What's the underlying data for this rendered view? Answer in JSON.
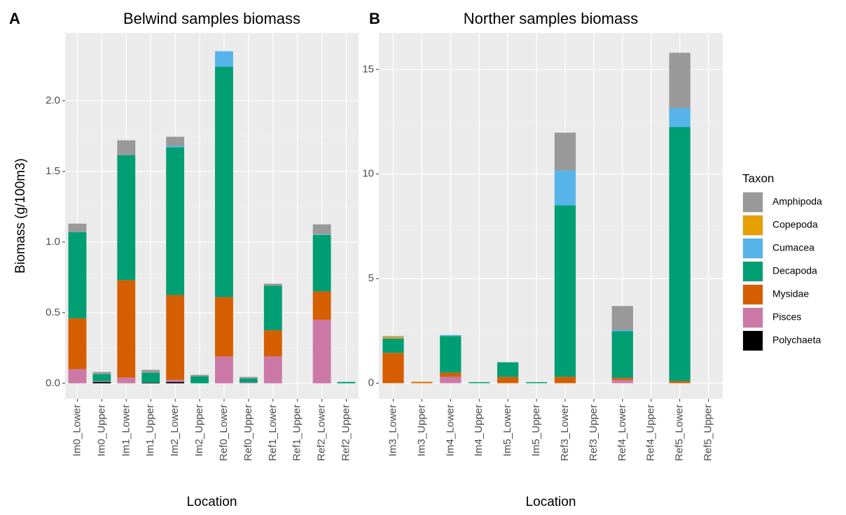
{
  "chart_data": [
    {
      "type": "bar",
      "stacked": true,
      "panel_label": "A",
      "title": "Belwind samples biomass",
      "x_label": "Location",
      "y_label": "Biomass (g/100m3)",
      "categories": [
        "Im0_Lower",
        "Im0_Upper",
        "Im1_Lower",
        "Im1_Upper",
        "Im2_Lower",
        "Im2_Upper",
        "Ref0_Lower",
        "Ref0_Upper",
        "Ref1_Lower",
        "Ref1_Upper",
        "Ref2_Lower",
        "Ref2_Upper"
      ],
      "series": [
        {
          "name": "Polychaeta",
          "color": "#000000",
          "values": [
            0,
            0.01,
            0,
            0.005,
            0.01,
            0,
            0,
            0,
            0,
            0,
            0,
            0
          ]
        },
        {
          "name": "Pisces",
          "color": "#CC79A7",
          "values": [
            0.1,
            0.005,
            0.04,
            0,
            0.015,
            0,
            0.19,
            0.005,
            0.19,
            0,
            0.45,
            0
          ]
        },
        {
          "name": "Mysidae",
          "color": "#D55E00",
          "values": [
            0.36,
            0,
            0.69,
            0,
            0.6,
            0,
            0.42,
            0,
            0.185,
            0,
            0.2,
            0
          ]
        },
        {
          "name": "Decapoda",
          "color": "#009E73",
          "values": [
            0.61,
            0.05,
            0.885,
            0.07,
            1.045,
            0.05,
            1.63,
            0.03,
            0.315,
            0,
            0.4,
            0.01
          ]
        },
        {
          "name": "Cumacea",
          "color": "#56B4E9",
          "values": [
            0,
            0,
            0,
            0,
            0.01,
            0,
            0.11,
            0,
            0,
            0,
            0.005,
            0
          ]
        },
        {
          "name": "Copepoda",
          "color": "#E69F00",
          "values": [
            0,
            0,
            0,
            0,
            0,
            0,
            0,
            0,
            0,
            0,
            0,
            0
          ]
        },
        {
          "name": "Amphipoda",
          "color": "#999999",
          "values": [
            0.06,
            0.015,
            0.105,
            0.02,
            0.065,
            0.01,
            0,
            0.01,
            0.015,
            0,
            0.07,
            0
          ]
        }
      ],
      "ylim": [
        -0.11,
        2.48
      ],
      "yticks": [
        {
          "value": 0,
          "label": "0.0"
        },
        0.5,
        {
          "value": 1,
          "label": "1.0"
        },
        1.5,
        {
          "value": 2,
          "label": "2.0"
        }
      ],
      "grid": true
    },
    {
      "type": "bar",
      "stacked": true,
      "panel_label": "B",
      "title": "Norther samples biomass",
      "x_label": "Location",
      "legend_title": "Taxon",
      "categories": [
        "Im3_Lower",
        "Im3_Upper",
        "Im4_Lower",
        "Im4_Upper",
        "Im5_Lower",
        "Im5_Upper",
        "Ref3_Lower",
        "Ref3_Upper",
        "Ref4_Lower",
        "Ref4_Upper",
        "Ref5_Lower",
        "Ref5_Upper"
      ],
      "series": [
        {
          "name": "Polychaeta",
          "color": "#000000",
          "values": [
            0,
            0,
            0,
            0,
            0,
            0,
            0,
            0,
            0,
            0,
            0,
            0
          ]
        },
        {
          "name": "Pisces",
          "color": "#CC79A7",
          "values": [
            0,
            0,
            0.3,
            0,
            0,
            0,
            0,
            0,
            0.15,
            0,
            0,
            0
          ]
        },
        {
          "name": "Mysidae",
          "color": "#D55E00",
          "values": [
            1.45,
            0.05,
            0.2,
            0,
            0.3,
            0,
            0.3,
            0,
            0.1,
            0,
            0.1,
            0
          ]
        },
        {
          "name": "Decapoda",
          "color": "#009E73",
          "values": [
            0.68,
            0,
            1.75,
            0.05,
            0.7,
            0.05,
            8.2,
            0,
            2.23,
            0,
            12.15,
            0
          ]
        },
        {
          "name": "Cumacea",
          "color": "#56B4E9",
          "values": [
            0,
            0,
            0.05,
            0,
            0,
            0,
            1.67,
            0,
            0.05,
            0,
            0.9,
            0
          ]
        },
        {
          "name": "Copepoda",
          "color": "#E69F00",
          "values": [
            0.07,
            0.02,
            0,
            0,
            0,
            0,
            0,
            0,
            0,
            0,
            0,
            0
          ]
        },
        {
          "name": "Amphipoda",
          "color": "#999999",
          "values": [
            0.05,
            0,
            0,
            0,
            0,
            0,
            1.81,
            0,
            1.16,
            0,
            2.65,
            0
          ]
        }
      ],
      "ylim": [
        -0.75,
        16.75
      ],
      "yticks": [
        0,
        5,
        10,
        15
      ],
      "grid": true
    }
  ]
}
